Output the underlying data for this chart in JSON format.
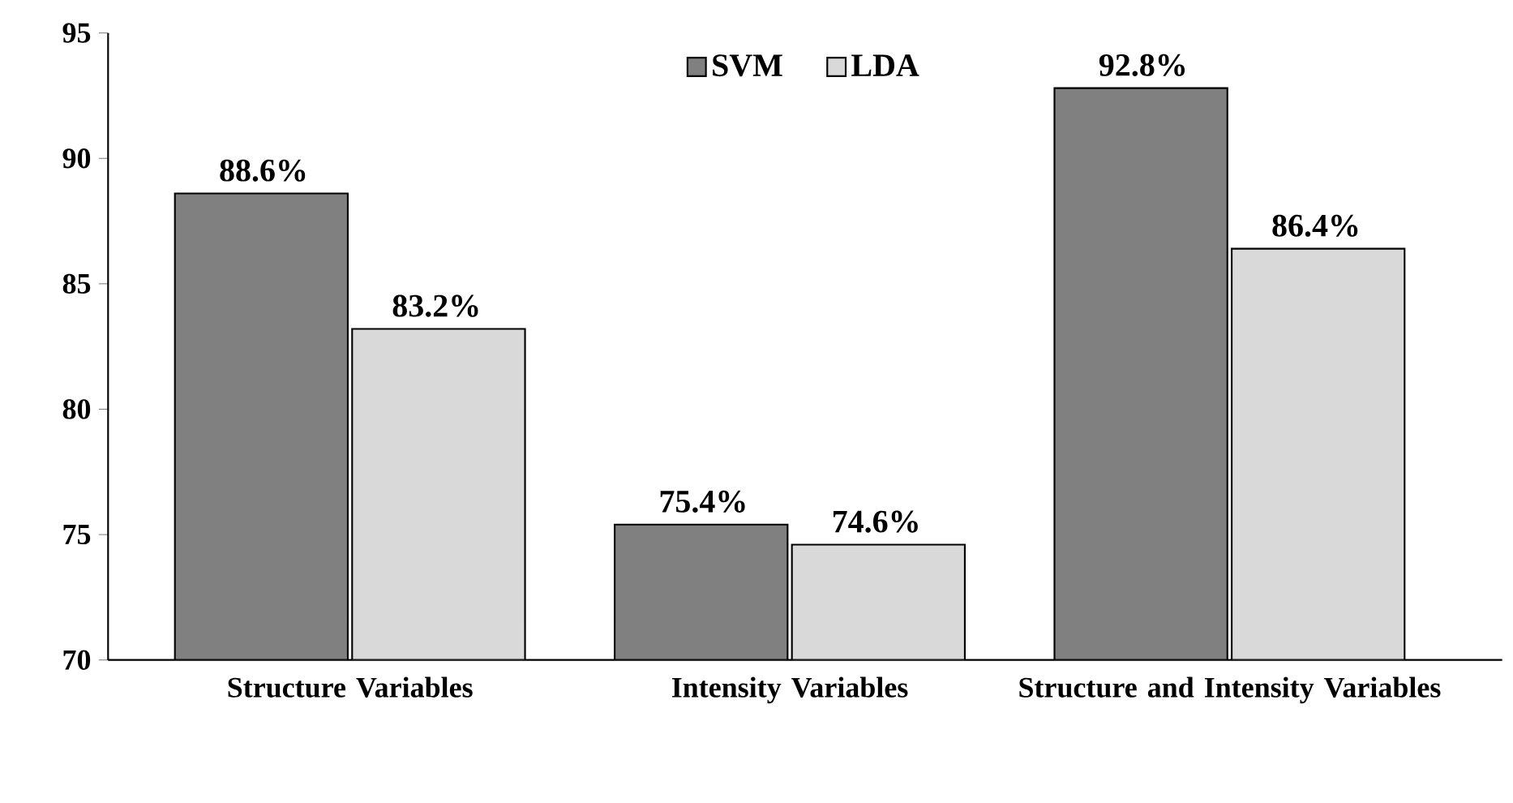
{
  "chart_data": {
    "type": "bar",
    "categories": [
      "Structure Variables",
      "Intensity Variables",
      "Structure and Intensity Variables"
    ],
    "series": [
      {
        "name": "SVM",
        "color": "#808080",
        "values": [
          88.6,
          75.4,
          92.8
        ],
        "value_labels": [
          "88.6%",
          "75.4%",
          "92.8%"
        ]
      },
      {
        "name": "LDA",
        "color": "#d9d9d9",
        "values": [
          83.2,
          74.6,
          86.4
        ],
        "value_labels": [
          "83.2%",
          "74.6%",
          "86.4%"
        ]
      }
    ],
    "ylim": [
      70,
      95
    ],
    "yticks": [
      70,
      75,
      80,
      85,
      90,
      95
    ],
    "legend": "top",
    "grid": false
  }
}
